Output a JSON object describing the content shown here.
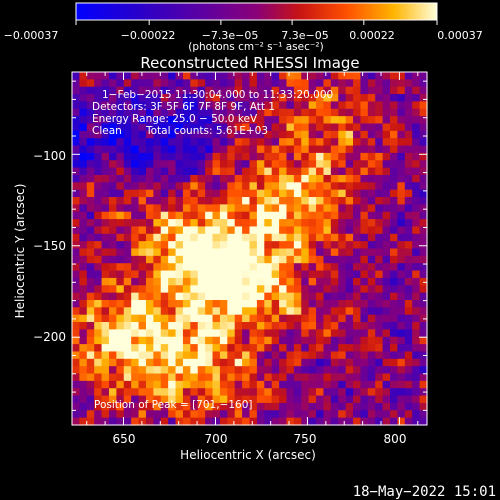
{
  "chart_data": {
    "type": "heatmap",
    "title": "Reconstructed RHESSI Image",
    "xlabel": "Heliocentric X (arcsec)",
    "ylabel": "Heliocentric Y (arcsec)",
    "xlim": [
      622,
      815
    ],
    "ylim": [
      -248,
      -55
    ],
    "x_ticks": [
      650,
      700,
      750,
      800
    ],
    "x_tick_labels": [
      "650",
      "700",
      "750",
      "800"
    ],
    "y_ticks": [
      -100,
      -150,
      -200
    ],
    "y_tick_labels": [
      "−100",
      "−150",
      "−200"
    ],
    "colorbar": {
      "range": [
        -0.00037,
        0.00037
      ],
      "ticks": [
        -0.00037,
        -0.00022,
        -7.3e-05,
        7.3e-05,
        0.00022,
        0.00037
      ],
      "tick_labels": [
        "−0.00037",
        "−0.00022",
        "−7.3e−05",
        "7.3e−05",
        "0.00022",
        "0.00037"
      ],
      "units": "(photons cm⁻² s⁻¹ asec⁻²)",
      "colormap": "blue-purple-red-yellow-white"
    },
    "annotations": {
      "time_range": "1−Feb−2015 11:30:04.000 to 11:33:20.000",
      "detectors": "Detectors: 3F 5F 6F 7F 8F 9F, Att 1",
      "energy": "Energy Range: 25.0 − 50.0 keV",
      "clean": "Clean",
      "counts": "Total counts: 5.61E+03",
      "peak": "Position of Peak = [701,−160]"
    },
    "peak_position": [
      701,
      -160
    ],
    "sources": [
      {
        "x": 701,
        "y": -160,
        "rel_intensity": 1.0
      },
      {
        "x": 742,
        "y": -130,
        "rel_intensity": 0.75
      },
      {
        "x": 650,
        "y": -200,
        "rel_intensity": 0.82
      },
      {
        "x": 760,
        "y": -80,
        "rel_intensity": 0.45
      },
      {
        "x": 692,
        "y": -215,
        "rel_intensity": 0.7
      }
    ],
    "footer_date": "18−May−2022 15:01"
  }
}
